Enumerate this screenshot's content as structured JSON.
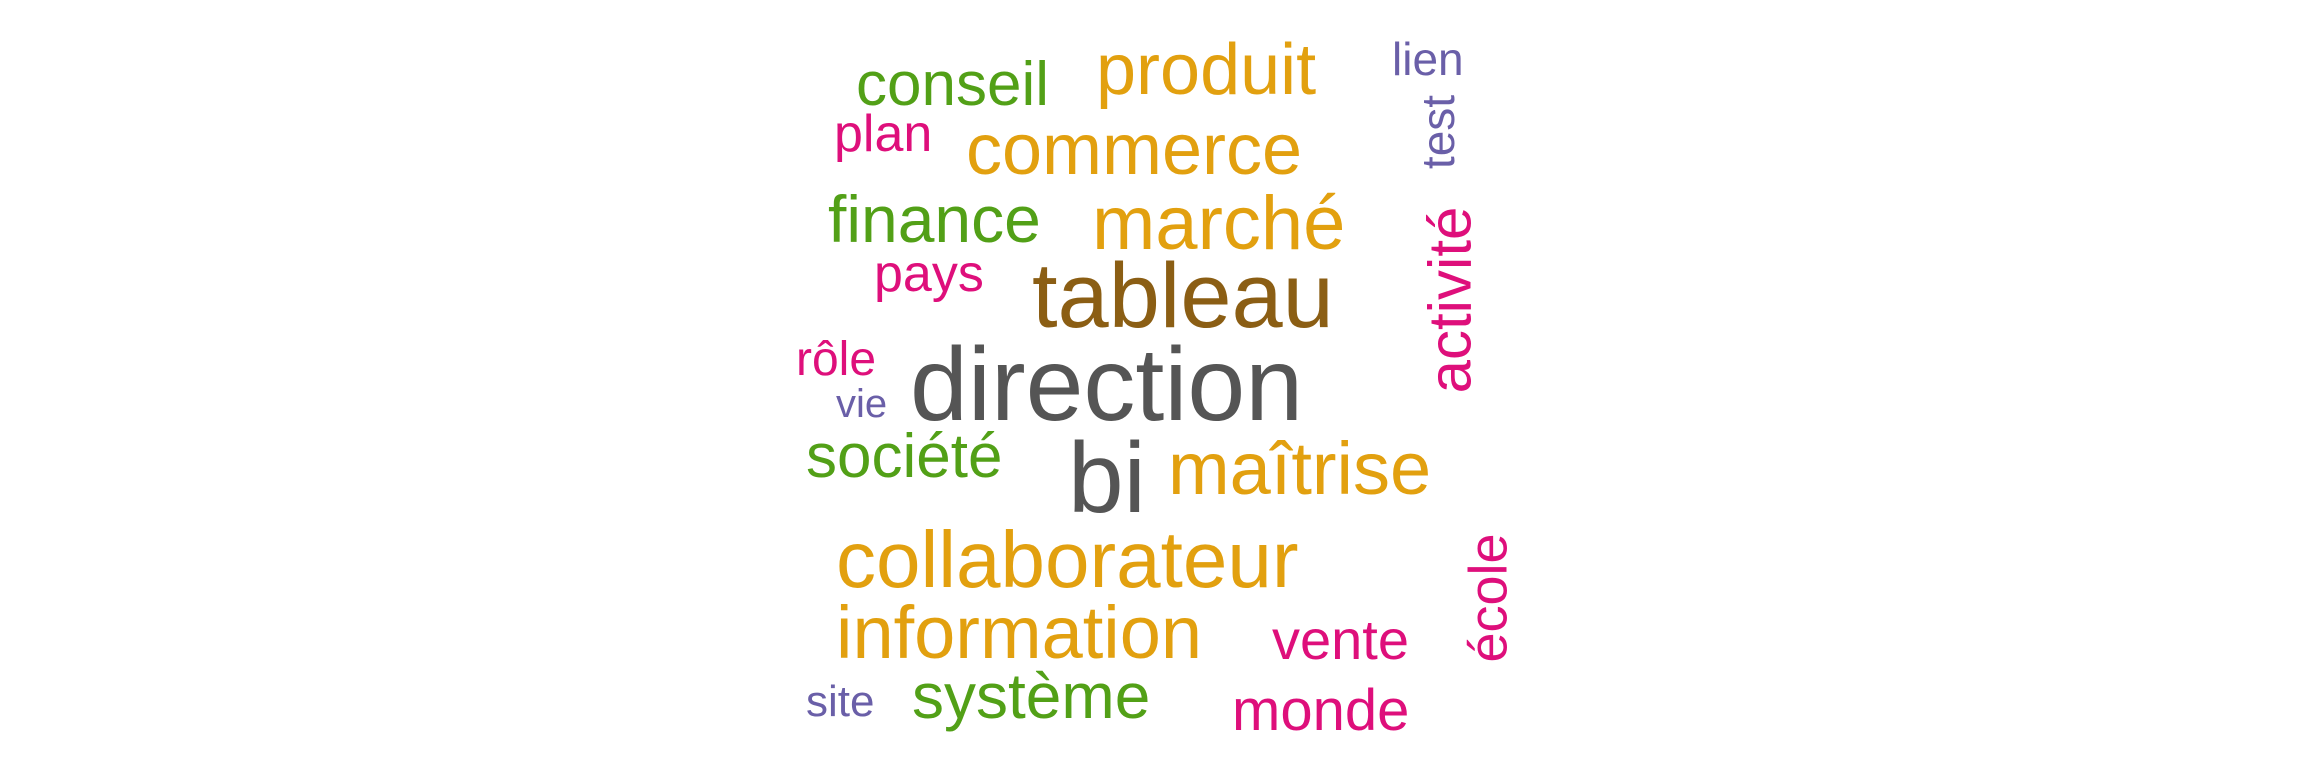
{
  "colors": {
    "dark_grey": "#555555",
    "brown": "#8b5e14",
    "gold": "#e2a00f",
    "green": "#52a017",
    "magenta": "#de0f7b",
    "purple": "#6a5fa8"
  },
  "words": [
    {
      "text": "direction",
      "color": "#555555"
    },
    {
      "text": "tableau",
      "color": "#8b5e14"
    },
    {
      "text": "bi",
      "color": "#555555"
    },
    {
      "text": "collaborateur",
      "color": "#e2a00f"
    },
    {
      "text": "information",
      "color": "#e2a00f"
    },
    {
      "text": "marché",
      "color": "#e2a00f"
    },
    {
      "text": "maîtrise",
      "color": "#e2a00f"
    },
    {
      "text": "produit",
      "color": "#e2a00f"
    },
    {
      "text": "commerce",
      "color": "#e2a00f"
    },
    {
      "text": "finance",
      "color": "#52a017"
    },
    {
      "text": "conseil",
      "color": "#52a017"
    },
    {
      "text": "société",
      "color": "#52a017"
    },
    {
      "text": "système",
      "color": "#52a017"
    },
    {
      "text": "activité",
      "color": "#de0f7b"
    },
    {
      "text": "vente",
      "color": "#de0f7b"
    },
    {
      "text": "monde",
      "color": "#de0f7b"
    },
    {
      "text": "école",
      "color": "#de0f7b"
    },
    {
      "text": "pays",
      "color": "#de0f7b"
    },
    {
      "text": "plan",
      "color": "#de0f7b"
    },
    {
      "text": "rôle",
      "color": "#de0f7b"
    },
    {
      "text": "test",
      "color": "#6a5fa8"
    },
    {
      "text": "lien",
      "color": "#6a5fa8"
    },
    {
      "text": "vie",
      "color": "#6a5fa8"
    },
    {
      "text": "site",
      "color": "#6a5fa8"
    }
  ]
}
